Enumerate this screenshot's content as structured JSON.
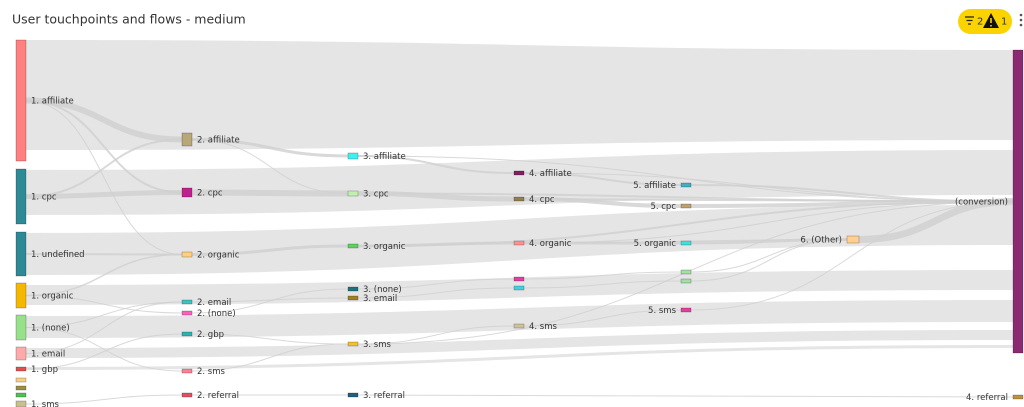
{
  "header": {
    "title": "User touchpoints and flows - medium",
    "filter_count": "2",
    "warning_count": "1"
  },
  "nodes": [
    {
      "label": "1. affiliate",
      "color": "#ff8080"
    },
    {
      "label": "1. cpc",
      "color": "#2e8b96"
    },
    {
      "label": "1. undefined",
      "color": "#2e8996"
    },
    {
      "label": "1. organic",
      "color": "#f5b800"
    },
    {
      "label": "1. (none)",
      "color": "#98e08a"
    },
    {
      "label": "1. email",
      "color": "#ffaaaa"
    },
    {
      "label": "1. gbp",
      "color": "#e05050"
    },
    {
      "color": "#f5d080"
    },
    {
      "color": "#9a9040"
    },
    {
      "color": "#50c050"
    },
    {
      "label": "1. sms",
      "color": "#c8c090"
    },
    {
      "label": "2. affiliate",
      "color": "#b8a878"
    },
    {
      "label": "2. cpc",
      "color": "#c0208a"
    },
    {
      "label": "2. organic",
      "color": "#ffd080"
    },
    {
      "label": "2. email",
      "color": "#40c0c0"
    },
    {
      "label": "2. (none)",
      "color": "#ff60c0"
    },
    {
      "label": "2. gbp",
      "color": "#30b0b0"
    },
    {
      "label": "2. sms",
      "color": "#ff8090"
    },
    {
      "label": "2. referral",
      "color": "#e05060"
    },
    {
      "label": "3. affiliate",
      "color": "#40f0f0"
    },
    {
      "label": "3. cpc",
      "color": "#c0f0b0"
    },
    {
      "label": "3. organic",
      "color": "#60d060"
    },
    {
      "label": "3. (none)",
      "color": "#207080"
    },
    {
      "label": "3. email",
      "color": "#a08020"
    },
    {
      "label": "3. sms",
      "color": "#f0c030"
    },
    {
      "label": "3. referral",
      "color": "#206080"
    },
    {
      "label": "4. affiliate",
      "color": "#802060"
    },
    {
      "label": "4. cpc",
      "color": "#908050"
    },
    {
      "label": "4. organic",
      "color": "#ff9090"
    },
    {
      "color": "#e040a0"
    },
    {
      "color": "#40d0e0"
    },
    {
      "label": "4. sms",
      "color": "#d0c0a0"
    },
    {
      "label": "5. affiliate",
      "color": "#40b0c0"
    },
    {
      "label": "5. cpc",
      "color": "#c0a070"
    },
    {
      "label": "5. organic",
      "color": "#40e0e0"
    },
    {
      "color": "#a0e0a0"
    },
    {
      "color": "#a0e0a0"
    },
    {
      "label": "5. sms",
      "color": "#e040a0"
    },
    {
      "label": "6. (Other)",
      "color": "#ffd090"
    },
    {
      "label": "(conversion)",
      "color": "#8b2a72"
    },
    {
      "label": "4. referral",
      "color": "#c09040"
    }
  ]
}
